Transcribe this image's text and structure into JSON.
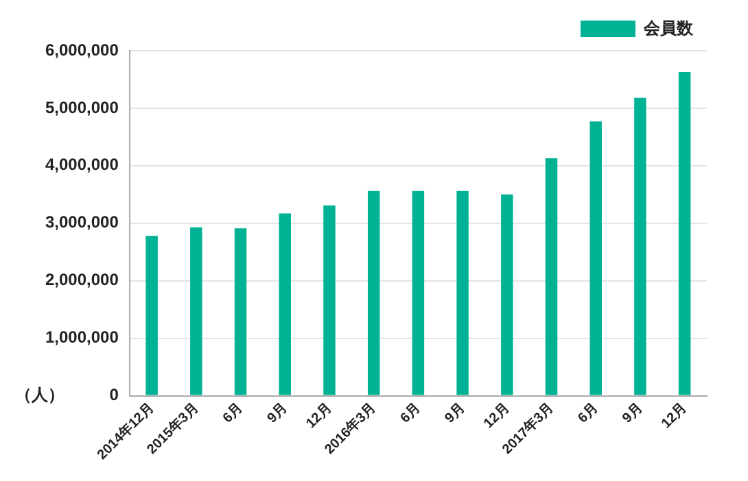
{
  "chart_data": {
    "type": "bar",
    "ylabel": "（人）",
    "categories": [
      "2014年12月",
      "2015年3月",
      "6月",
      "9月",
      "12月",
      "2016年3月",
      "6月",
      "9月",
      "12月",
      "2017年3月",
      "6月",
      "9月",
      "12月"
    ],
    "series": [
      {
        "name": "会員数",
        "color": "#00b294",
        "values": [
          2780000,
          2930000,
          2910000,
          3170000,
          3310000,
          3560000,
          3560000,
          3560000,
          3500000,
          4130000,
          4770000,
          5180000,
          5630000
        ]
      }
    ],
    "ylim": [
      0,
      6000000
    ],
    "yticks": [
      0,
      {
        "value": 1000000,
        "label": "1,000,000"
      },
      {
        "value": 2000000,
        "label": "2,000,000"
      },
      {
        "value": 3000000,
        "label": "3,000,000"
      },
      {
        "value": 4000000,
        "label": "4,000,000"
      },
      {
        "value": 5000000,
        "label": "5,000,000"
      },
      {
        "value": 6000000,
        "label": "6,000,000"
      }
    ],
    "grid": "y",
    "legend": "top right"
  }
}
